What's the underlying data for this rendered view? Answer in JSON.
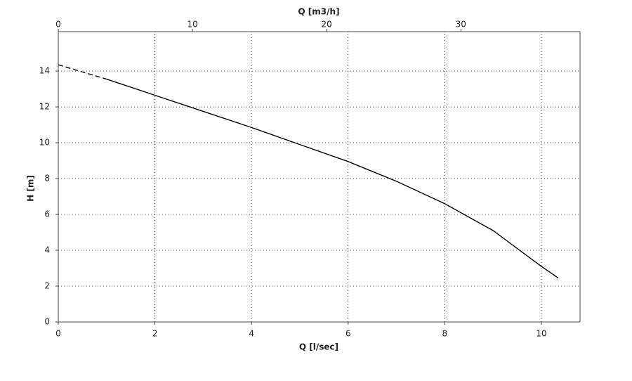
{
  "chart_data": {
    "type": "line",
    "xlabel": "Q [l/sec]",
    "ylabel": "H [m]",
    "x2label": "Q [m3/h]",
    "xlim": [
      0,
      10.8
    ],
    "xticks": [
      0,
      2,
      4,
      6,
      8,
      10
    ],
    "x2lim": [
      0,
      38.88
    ],
    "x2ticks": [
      0,
      10,
      20,
      30
    ],
    "ylim": [
      0,
      16.2
    ],
    "yticks": [
      0,
      2,
      4,
      6,
      8,
      10,
      12,
      14
    ],
    "grid": true,
    "series": [
      {
        "color": "#000000",
        "dashed": true,
        "x": [
          0,
          0.5,
          1
        ],
        "values": [
          14.35,
          13.95,
          13.55
        ]
      },
      {
        "color": "#000000",
        "dashed": false,
        "x": [
          1,
          2,
          3,
          4,
          5,
          6,
          7,
          8,
          9,
          10,
          10.35
        ],
        "values": [
          13.55,
          12.65,
          11.75,
          10.85,
          9.9,
          8.95,
          7.85,
          6.6,
          5.1,
          3.1,
          2.45
        ]
      }
    ]
  }
}
